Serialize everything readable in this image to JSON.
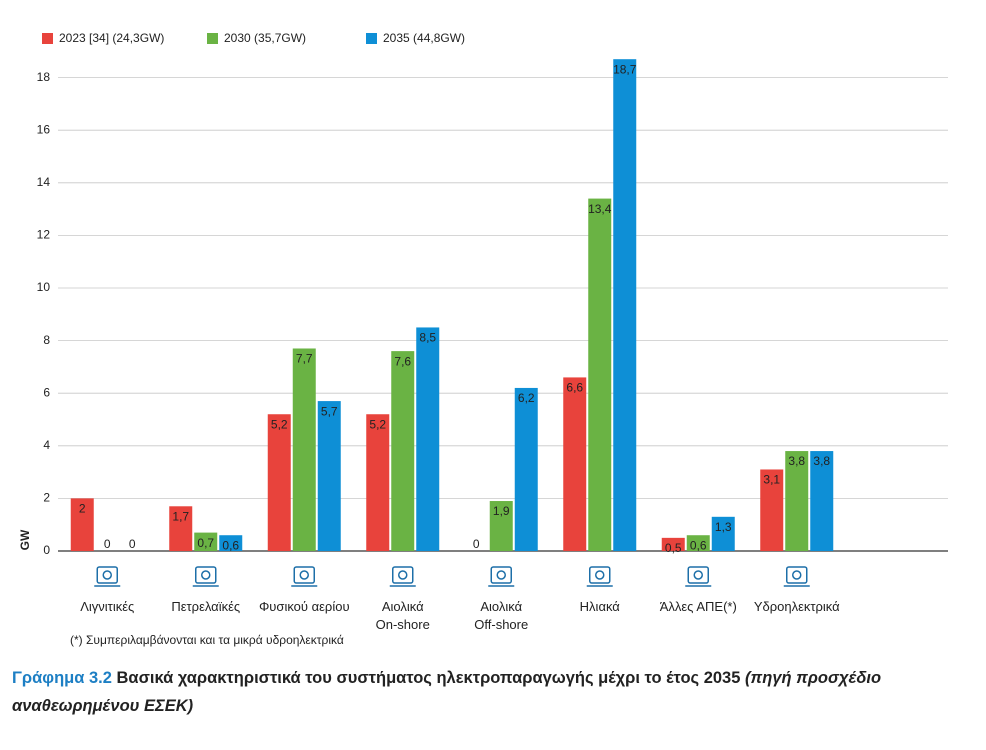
{
  "chart_data": {
    "type": "bar",
    "y_label": "GW",
    "note": "(*) Συμπεριλαμβάνονται και τα μικρά υδροηλεκτρικά",
    "categories": [
      "Λιγνιτικές",
      "Πετρελαϊκές",
      "Φυσικού αερίου",
      "Αιολικά\nOn-shore",
      "Αιολικά\nOff-shore",
      "Ηλιακά",
      "Άλλες ΑΠΕ(*)",
      "Υδροηλεκτρικά"
    ],
    "series": [
      {
        "name": "2023 [34] (24,3GW)",
        "color": "#e8433c",
        "values": [
          2,
          1.7,
          5.2,
          5.2,
          0,
          6.6,
          0.5,
          3.1
        ],
        "value_labels": [
          "2",
          "1,7",
          "5,2",
          "5,2",
          "0",
          "6,6",
          "0,5",
          "3,1"
        ]
      },
      {
        "name": "2030 (35,7GW)",
        "color": "#6ab344",
        "values": [
          0,
          0.7,
          7.7,
          7.6,
          1.9,
          13.4,
          0.6,
          3.8
        ],
        "value_labels": [
          "0",
          "0,7",
          "7,7",
          "7,6",
          "1,9",
          "13,4",
          "0,6",
          "3,8"
        ]
      },
      {
        "name": "2035 (44,8GW)",
        "color": "#0e8fd6",
        "values": [
          0,
          0.6,
          5.7,
          8.5,
          6.2,
          18.7,
          1.3,
          3.8
        ],
        "value_labels": [
          "0",
          "0,6",
          "5,7",
          "8,5",
          "6,2",
          "18,7",
          "1,3",
          "3,8"
        ]
      }
    ],
    "ylim": [
      0,
      20
    ],
    "yticks": [
      0,
      2,
      4,
      6,
      8,
      10,
      12,
      14,
      16,
      18
    ],
    "grid": true
  },
  "caption": {
    "label": "Γράφημα 3.2",
    "text": "Βασικά χαρακτηριστικά του συστήματος ηλεκτροπαραγωγής μέχρι το έτος 2035",
    "source": "(πηγή προσχέδιο αναθεωρημένου ΕΣΕΚ)"
  }
}
